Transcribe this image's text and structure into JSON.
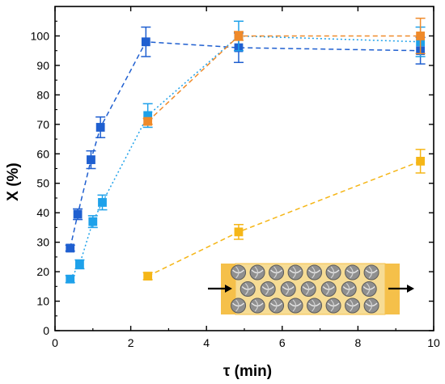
{
  "chart_data": {
    "type": "scatter",
    "title": "",
    "xlabel": "τ (min)",
    "ylabel": "X (%)",
    "xlim": [
      0,
      10
    ],
    "ylim": [
      0,
      110
    ],
    "x_ticks": [
      "0",
      "2",
      "4",
      "6",
      "8",
      "10"
    ],
    "y_ticks": [
      "0",
      "10",
      "20",
      "30",
      "40",
      "50",
      "60",
      "70",
      "80",
      "90",
      "100"
    ],
    "grid": false,
    "legend": "none",
    "series": [
      {
        "color": "#1f5fd0",
        "line_style": "dashed",
        "points": [
          {
            "x": 0.4,
            "y": 28,
            "err": 1
          },
          {
            "x": 0.6,
            "y": 39.5,
            "err": 1.8
          },
          {
            "x": 0.95,
            "y": 58,
            "err": 3
          },
          {
            "x": 1.2,
            "y": 69,
            "err": 3.5
          },
          {
            "x": 2.4,
            "y": 98,
            "err": 5
          },
          {
            "x": 4.85,
            "y": 96,
            "err": 5
          },
          {
            "x": 9.65,
            "y": 95,
            "err": 4.5
          }
        ]
      },
      {
        "color": "#1ea1ea",
        "line_style": "dotted",
        "points": [
          {
            "x": 0.4,
            "y": 17.5,
            "err": 1.2
          },
          {
            "x": 0.65,
            "y": 22.5,
            "err": 1.5
          },
          {
            "x": 1.0,
            "y": 37,
            "err": 2
          },
          {
            "x": 1.25,
            "y": 43.5,
            "err": 2.5
          },
          {
            "x": 2.45,
            "y": 73,
            "err": 4
          },
          {
            "x": 4.85,
            "y": 100,
            "err": 5
          },
          {
            "x": 9.65,
            "y": 98,
            "err": 5
          }
        ]
      },
      {
        "color": "#ef8a2a",
        "line_style": "dashed",
        "points": [
          {
            "x": 2.45,
            "y": 71,
            "err": 1
          },
          {
            "x": 4.85,
            "y": 100,
            "err": 1.5
          },
          {
            "x": 9.65,
            "y": 100,
            "err": 6
          }
        ]
      },
      {
        "color": "#f5b617",
        "line_style": "dashed",
        "points": [
          {
            "x": 2.45,
            "y": 18.5,
            "err": 1.2
          },
          {
            "x": 4.85,
            "y": 33.5,
            "err": 2.5
          },
          {
            "x": 9.65,
            "y": 57.5,
            "err": 4
          }
        ]
      }
    ],
    "inset": {
      "description_icon": "packed-bed-reactor-icon",
      "rows": [
        8,
        7,
        8
      ],
      "fill_color": "#f6dc95",
      "frame_color": "#f5c04a",
      "sphere_color": "#8f8f8f"
    }
  }
}
